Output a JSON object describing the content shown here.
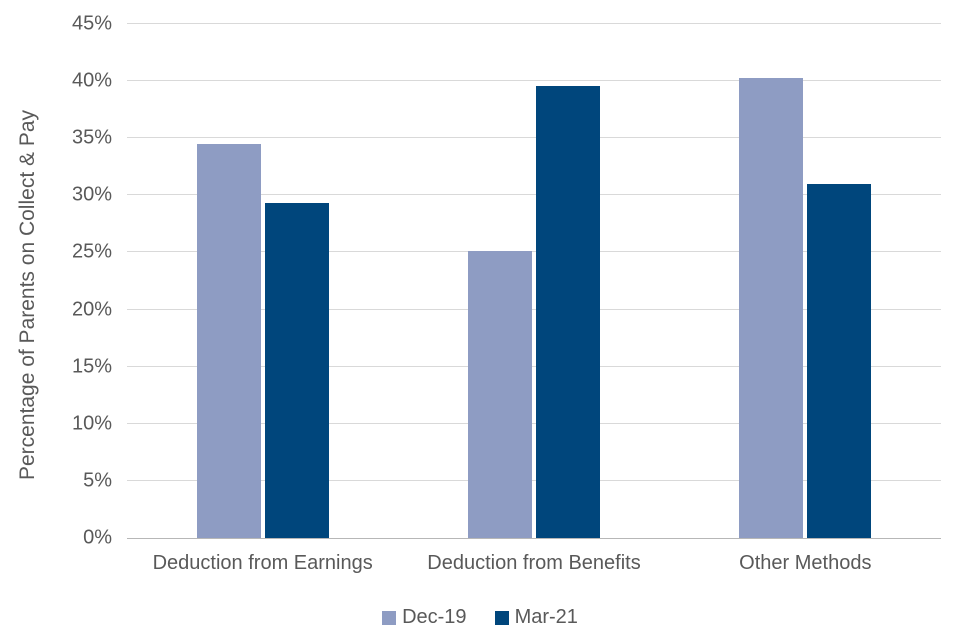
{
  "chart_data": {
    "type": "bar",
    "title": "",
    "ylabel": "Percentage of Parents on Collect & Pay",
    "xlabel": "",
    "categories": [
      "Deduction from Earnings",
      "Deduction from Benefits",
      "Other Methods"
    ],
    "series": [
      {
        "name": "Dec-19",
        "color": "#8e9cc3",
        "values": [
          34.5,
          25.1,
          40.3
        ]
      },
      {
        "name": "Mar-21",
        "color": "#00467c",
        "values": [
          29.3,
          39.6,
          31.0
        ]
      }
    ],
    "ylim": [
      0,
      45
    ],
    "ytick_step": 5,
    "ytick_labels": [
      "0%",
      "5%",
      "10%",
      "15%",
      "20%",
      "25%",
      "30%",
      "35%",
      "40%",
      "45%"
    ],
    "grid": true,
    "legend_position": "bottom",
    "colors": {
      "gridline": "#d9d9d9",
      "axis_line": "#b7b7b7",
      "text": "#595959",
      "background": "#ffffff"
    }
  }
}
